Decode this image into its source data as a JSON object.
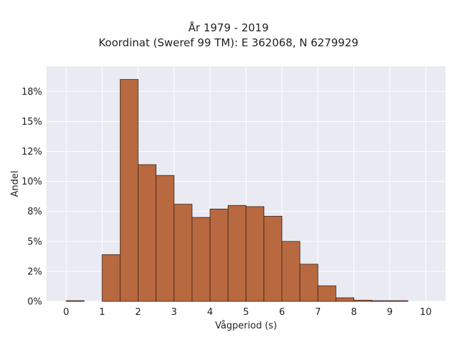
{
  "chart_data": {
    "type": "bar",
    "title_lines": [
      "År 1979 - 2019",
      "Koordinat (Sweref 99 TM): E 362068, N 6279929"
    ],
    "xlabel": "Vågperiod (s)",
    "ylabel": "Andel",
    "bin_edges": [
      0,
      0.5,
      1,
      1.5,
      2,
      2.5,
      3,
      3.5,
      4,
      4.5,
      5,
      5.5,
      6,
      6.5,
      7,
      7.5,
      8,
      8.5,
      9,
      9.5,
      10
    ],
    "values": [
      0.0005,
      0,
      3.9,
      18.5,
      11.4,
      10.5,
      8.1,
      7.0,
      7.7,
      8.0,
      7.9,
      7.1,
      5.0,
      3.1,
      1.3,
      0.3,
      0.1,
      0.05,
      0.05,
      0
    ],
    "xlim": [
      -0.55,
      10.55
    ],
    "ylim": [
      0,
      19.6
    ],
    "x_ticks": [
      0,
      1,
      2,
      3,
      4,
      5,
      6,
      7,
      8,
      9,
      10
    ],
    "x_tick_labels": [
      "0",
      "1",
      "2",
      "3",
      "4",
      "5",
      "6",
      "7",
      "8",
      "9",
      "10"
    ],
    "y_ticks": [
      0,
      2.5,
      5,
      7.5,
      10,
      12.5,
      15,
      17.5
    ],
    "y_tick_labels": [
      "0%",
      "2%",
      "5%",
      "8%",
      "10%",
      "12%",
      "15%",
      "18%"
    ],
    "grid": true,
    "colors": {
      "bar_fill": "#b8693f",
      "bar_stroke": "#3a2418",
      "plot_background": "#eaeaf2",
      "grid": "#ffffff"
    }
  }
}
